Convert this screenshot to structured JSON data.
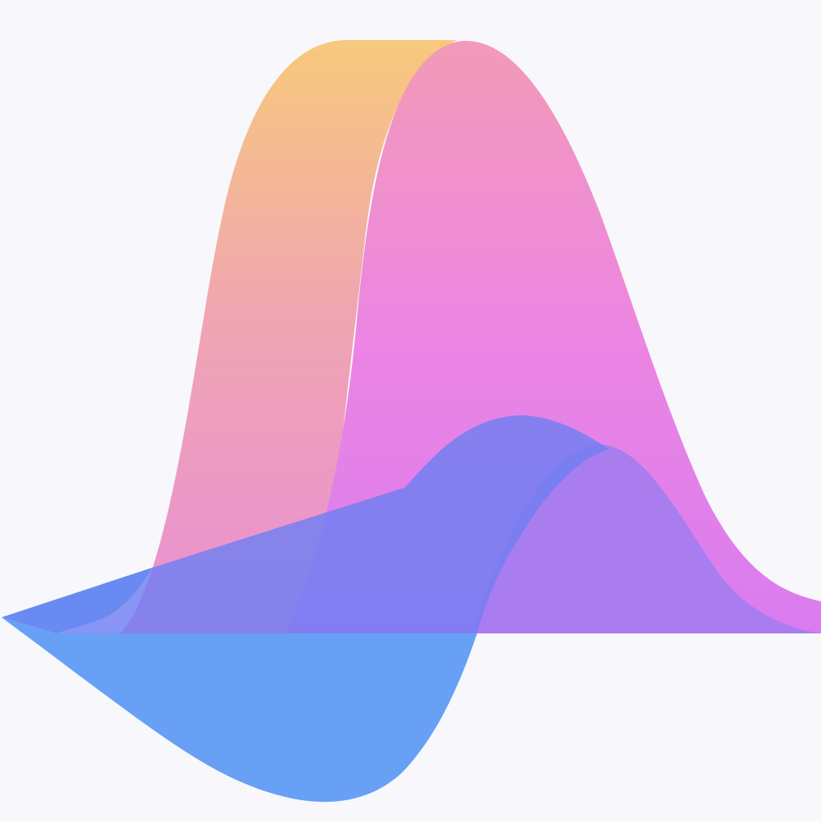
{
  "background": "#f8f7fb",
  "colors": {
    "peak_warm_top": "#f7c97c",
    "peak_warm_mid": "#f0a6b0",
    "peak_warm_bottom": "#e98fd6",
    "peak_pink_top": "#f39ab7",
    "peak_pink_mid": "#ec85e3",
    "peak_pink_bottom": "#d97cf0",
    "cyan_accent": "#3fb6f3",
    "wave_blue": "#6f7ff2",
    "wave_violet": "#a07df0",
    "wave_lower_blue": "#5f9bf5"
  }
}
